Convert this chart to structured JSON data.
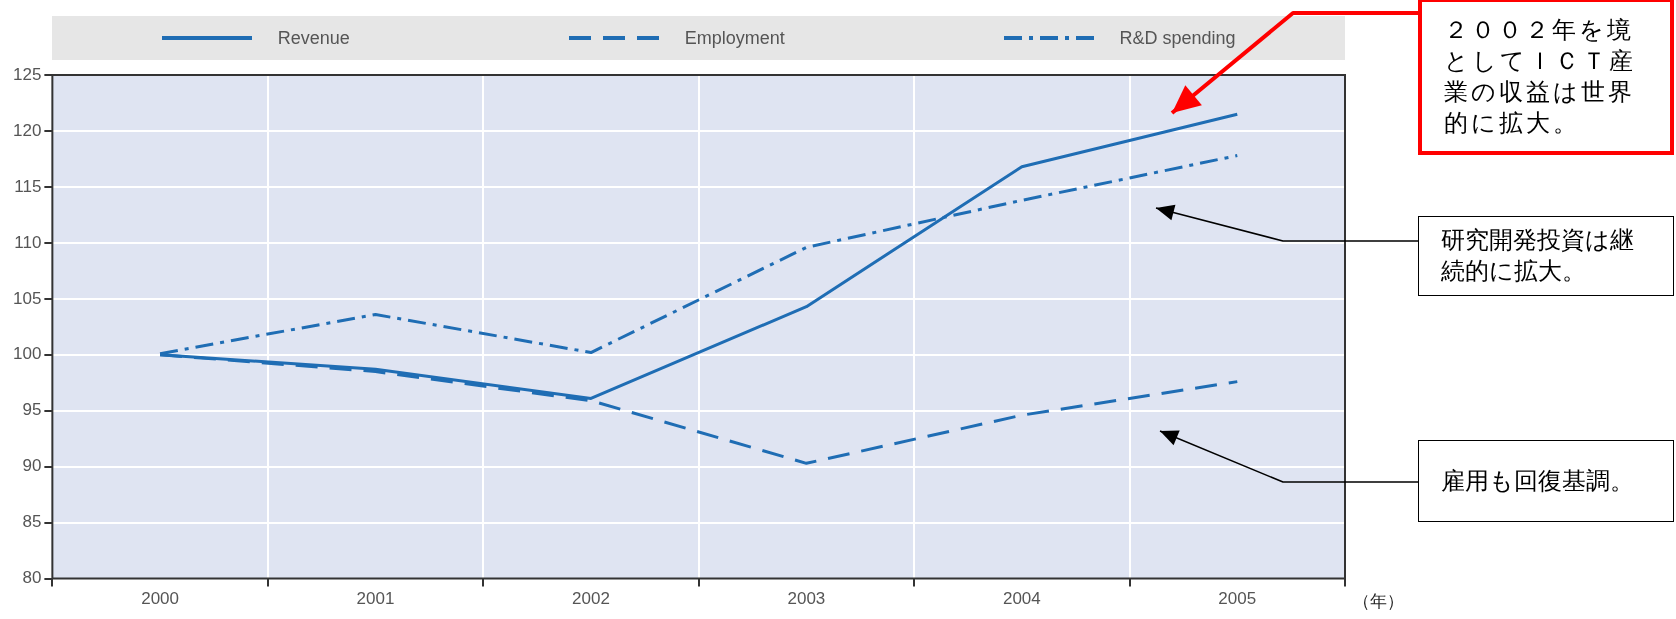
{
  "chart_data": {
    "type": "line",
    "categories": [
      "2000",
      "2001",
      "2002",
      "2003",
      "2004",
      "2005"
    ],
    "series": [
      {
        "name": "Revenue",
        "color": "#1f6db4",
        "line_style": "solid",
        "values": [
          100,
          98.7,
          96.1,
          104.3,
          116.8,
          121.5
        ]
      },
      {
        "name": "Employment",
        "color": "#1f6db4",
        "line_style": "dashed",
        "values": [
          100,
          98.5,
          95.9,
          90.3,
          94.6,
          97.6
        ]
      },
      {
        "name": "R&D spending",
        "color": "#1f6db4",
        "line_style": "dashdot",
        "values": [
          100.1,
          103.6,
          100.2,
          109.6,
          113.8,
          117.8
        ]
      }
    ],
    "xlabel": "（年）",
    "ylim": [
      80,
      125
    ],
    "yticks": [
      80,
      85,
      90,
      95,
      100,
      105,
      110,
      115,
      120,
      125
    ],
    "grid": true,
    "legend": "top",
    "marker": "none",
    "annotations": [
      "２００２年を境としてＩＣＴ産業の収益は世界的に拡大。",
      "研究開発投資は継続的に拡大。",
      "雇用も回復基調。"
    ]
  }
}
